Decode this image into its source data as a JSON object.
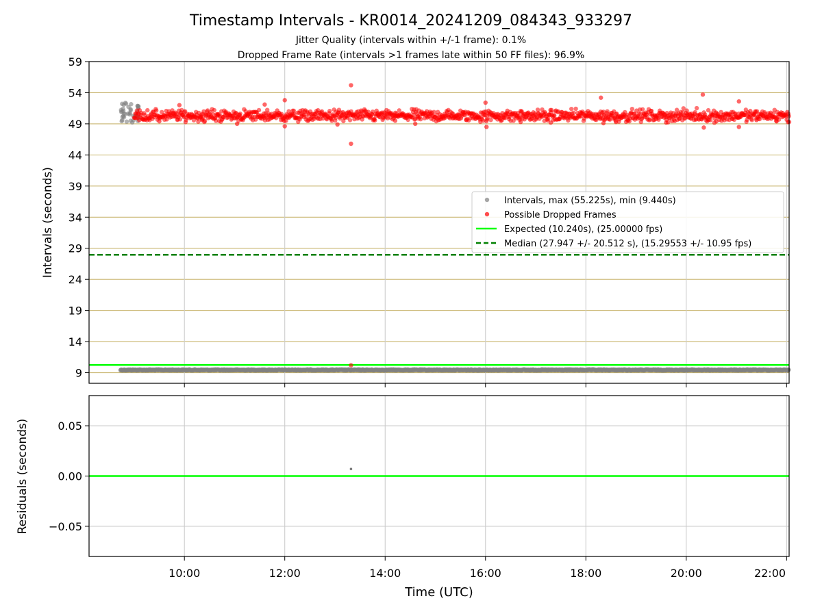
{
  "title": "Timestamp Intervals - KR0014_20241209_084343_933297",
  "subtitle_lines": [
    "Jitter Quality (intervals within +/-1 frame): 0.1%",
    "Dropped Frame Rate (intervals >1 frames late within 50 FF files): 96.9%"
  ],
  "chart_data": [
    {
      "type": "scatter",
      "name": "intervals",
      "ylabel": "Intervals (seconds)",
      "xlabel": "",
      "x_unit": "hours UTC",
      "xlim": [
        8.1,
        22.05
      ],
      "ylim": [
        7.3,
        59
      ],
      "yticks": [
        9,
        14,
        19,
        24,
        29,
        34,
        39,
        44,
        49,
        54,
        59
      ],
      "ytick_labels": [
        "9",
        "14",
        "19",
        "24",
        "29",
        "34",
        "39",
        "44",
        "49",
        "54",
        "59"
      ],
      "xticks": [
        10,
        12,
        14,
        16,
        18,
        20,
        22
      ],
      "grid": true,
      "series": [
        {
          "name": "Intervals, max (55.225s), min (9.440s)",
          "kind": "scatter",
          "color": "#808080",
          "description": "nominal frames near 9.44 s from 08:44 to 22:03, plus early cluster 49–52.5 s before 09:00",
          "baseline_value": 9.44,
          "baseline_x_range": [
            8.73,
            22.05
          ],
          "early_cluster_x_range": [
            8.73,
            9.0
          ],
          "early_cluster_y_range": [
            49.2,
            52.5
          ]
        },
        {
          "name": "Possible Dropped Frames",
          "kind": "scatter",
          "color": "#ff0000",
          "main_band_x_range": [
            9.0,
            22.05
          ],
          "main_band_y_range": [
            49.4,
            51.4
          ],
          "outliers": [
            {
              "x": 9.5,
              "y": 49.4
            },
            {
              "x": 9.9,
              "y": 52.0
            },
            {
              "x": 10.35,
              "y": 49.6
            },
            {
              "x": 11.05,
              "y": 49.0
            },
            {
              "x": 11.6,
              "y": 52.1
            },
            {
              "x": 12.0,
              "y": 52.8
            },
            {
              "x": 12.0,
              "y": 48.6
            },
            {
              "x": 13.05,
              "y": 48.9
            },
            {
              "x": 13.32,
              "y": 55.2
            },
            {
              "x": 13.32,
              "y": 45.8
            },
            {
              "x": 13.32,
              "y": 10.2
            },
            {
              "x": 14.2,
              "y": 49.5
            },
            {
              "x": 14.6,
              "y": 49.0
            },
            {
              "x": 16.0,
              "y": 52.4
            },
            {
              "x": 16.02,
              "y": 48.5
            },
            {
              "x": 16.7,
              "y": 49.3
            },
            {
              "x": 17.3,
              "y": 49.2
            },
            {
              "x": 18.3,
              "y": 53.2
            },
            {
              "x": 18.35,
              "y": 49.1
            },
            {
              "x": 18.6,
              "y": 49.3
            },
            {
              "x": 19.6,
              "y": 49.2
            },
            {
              "x": 20.33,
              "y": 53.7
            },
            {
              "x": 20.35,
              "y": 48.4
            },
            {
              "x": 20.6,
              "y": 49.4
            },
            {
              "x": 21.05,
              "y": 52.6
            },
            {
              "x": 21.05,
              "y": 48.5
            },
            {
              "x": 21.4,
              "y": 49.6
            },
            {
              "x": 21.8,
              "y": 49.4
            },
            {
              "x": 22.05,
              "y": 49.3
            }
          ]
        },
        {
          "name": "Expected (10.240s), (25.00000 fps)",
          "kind": "hline",
          "value": 10.24,
          "color": "#00ff00",
          "dash": "solid"
        },
        {
          "name": "Median (27.947 +/- 20.512 s), (15.29553 +/- 10.95 fps)",
          "kind": "hline",
          "value": 27.947,
          "color": "#008000",
          "dash": "dashed"
        }
      ],
      "legend": "center-right"
    },
    {
      "type": "scatter",
      "name": "residuals",
      "ylabel": "Residuals (seconds)",
      "xlabel": "Time (UTC)",
      "x_unit": "hours UTC",
      "xlim": [
        8.1,
        22.05
      ],
      "ylim": [
        -0.08,
        0.08
      ],
      "yticks": [
        0.05,
        0.0,
        -0.05
      ],
      "ytick_labels": [
        "0.05",
        "0.00",
        "−0.05"
      ],
      "xticks": [
        10,
        12,
        14,
        16,
        18,
        20,
        22
      ],
      "xtick_labels": [
        "10:00",
        "12:00",
        "14:00",
        "16:00",
        "18:00",
        "20:00",
        "22:00"
      ],
      "grid": true,
      "series": [
        {
          "name": "zero",
          "kind": "hline",
          "value": 0.0,
          "color": "#00ff00"
        },
        {
          "name": "residual point",
          "kind": "scatter",
          "color": "#777777",
          "points": [
            {
              "x": 13.32,
              "y": 0.007
            }
          ]
        }
      ]
    }
  ]
}
